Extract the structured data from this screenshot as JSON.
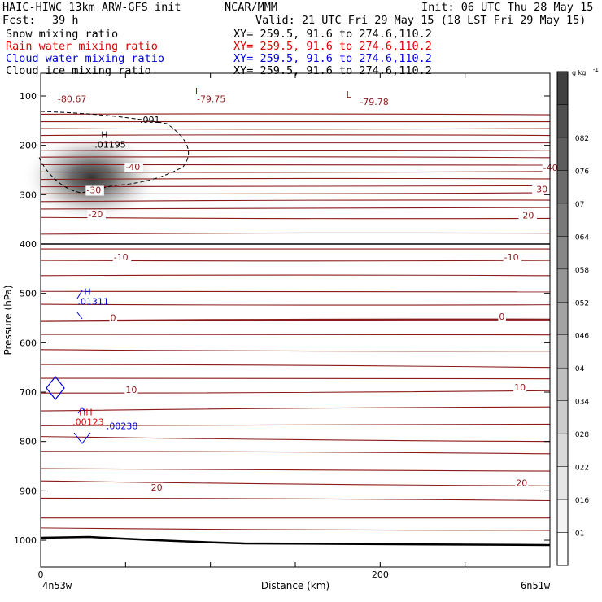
{
  "header": {
    "model": "HAIC-HIWC 13km ARW-GFS init",
    "center": "NCAR/MMM",
    "init": "Init: 06 UTC Thu 28 May 15",
    "fcst_label": "Fcst:",
    "fcst_value": "39 h",
    "valid": "Valid: 21 UTC Fri 29 May 15 (18 LST Fri 29 May 15)"
  },
  "fields": [
    {
      "name": "Snow mixing ratio",
      "xy": "XY= 259.5, 91.6 to 274.6,110.2",
      "color": "#000000"
    },
    {
      "name": "Rain water mixing ratio",
      "xy": "XY= 259.5, 91.6 to 274.6,110.2",
      "color": "#e00000"
    },
    {
      "name": "Cloud water mixing ratio",
      "xy": "XY= 259.5, 91.6 to 274.6,110.2",
      "color": "#0000e0"
    },
    {
      "name": "Cloud ice mixing ratio",
      "xy": "XY= 259.5, 91.6 to 274.6,110.2",
      "color": "#000000"
    }
  ],
  "chart_data": {
    "type": "cross-section",
    "xlabel": "Distance (km)",
    "ylabel": "Pressure (hPa)",
    "xlim": [
      0,
      300
    ],
    "x_ticks": [
      0,
      200
    ],
    "ylim": [
      1050,
      65
    ],
    "y_ticks": [
      100,
      200,
      300,
      400,
      500,
      600,
      700,
      800,
      900,
      1000
    ],
    "left_endpoint": "4n53w",
    "right_endpoint": "6n51w",
    "colorbar": {
      "unit": "g kg",
      "unit_exp": "-1",
      "levels": [
        ".01",
        ".016",
        ".022",
        ".028",
        ".034",
        ".04",
        ".046",
        ".052",
        ".058",
        ".064",
        ".07",
        ".076",
        ".082"
      ],
      "colors": [
        "#ffffff",
        "#f3f3f3",
        "#e6e6e6",
        "#d9d9d9",
        "#cccccc",
        "#bfbfbf",
        "#b1b1b1",
        "#a3a3a3",
        "#959595",
        "#878787",
        "#797979",
        "#6b6b6b",
        "#5d5d5d",
        "#4f4f4f",
        "#404040"
      ]
    },
    "temperature_labels": [
      {
        "text": "-80.67",
        "x": 10,
        "p": 112
      },
      {
        "text": "-79.75",
        "x": 92,
        "p": 112
      },
      {
        "text": "L",
        "x": 91,
        "p": 97
      },
      {
        "text": "L",
        "x": 180,
        "p": 103
      },
      {
        "text": "-79.78",
        "x": 188,
        "p": 118
      },
      {
        "text": "-40",
        "x": 50,
        "p": 250
      },
      {
        "text": "-40",
        "x": 296,
        "p": 252
      },
      {
        "text": "-30",
        "x": 27,
        "p": 297
      },
      {
        "text": "-30",
        "x": 290,
        "p": 295
      },
      {
        "text": "-20",
        "x": 28,
        "p": 346
      },
      {
        "text": "-20",
        "x": 282,
        "p": 348
      },
      {
        "text": "-10",
        "x": 43,
        "p": 433
      },
      {
        "text": "-10",
        "x": 273,
        "p": 433
      },
      {
        "text": "0",
        "x": 41,
        "p": 556
      },
      {
        "text": "0",
        "x": 270,
        "p": 553
      },
      {
        "text": "10",
        "x": 50,
        "p": 702
      },
      {
        "text": "10",
        "x": 279,
        "p": 697
      },
      {
        "text": "20",
        "x": 65,
        "p": 899
      },
      {
        "text": "20",
        "x": 280,
        "p": 890
      }
    ],
    "temperature_contours": [
      {
        "p_left": 137,
        "p_right": 138
      },
      {
        "p_left": 152,
        "p_right": 152
      },
      {
        "p_left": 166,
        "p_right": 166
      },
      {
        "p_left": 180,
        "p_right": 180
      },
      {
        "p_left": 195,
        "p_right": 195
      },
      {
        "p_left": 210,
        "p_right": 210
      },
      {
        "p_left": 224,
        "p_right": 225
      },
      {
        "p_left": 239,
        "p_right": 240
      },
      {
        "p_left": 254,
        "p_right": 253
      },
      {
        "p_left": 269,
        "p_right": 268
      },
      {
        "p_left": 284,
        "p_right": 282
      },
      {
        "p_left": 298,
        "p_right": 296
      },
      {
        "p_left": 314,
        "p_right": 311
      },
      {
        "p_left": 329,
        "p_right": 326
      },
      {
        "p_left": 346,
        "p_right": 348
      },
      {
        "p_left": 380,
        "p_right": 378
      },
      {
        "p_left": 410,
        "p_right": 410
      },
      {
        "p_left": 433,
        "p_right": 433
      },
      {
        "p_left": 464,
        "p_right": 464
      },
      {
        "p_left": 496,
        "p_right": 497
      },
      {
        "p_left": 522,
        "p_right": 523
      },
      {
        "p_left": 556,
        "p_right": 553
      },
      {
        "p_left": 583,
        "p_right": 584
      },
      {
        "p_left": 614,
        "p_right": 617
      },
      {
        "p_left": 644,
        "p_right": 650
      },
      {
        "p_left": 672,
        "p_right": 673
      },
      {
        "p_left": 702,
        "p_right": 697
      },
      {
        "p_left": 738,
        "p_right": 730
      },
      {
        "p_left": 768,
        "p_right": 765
      },
      {
        "p_left": 790,
        "p_right": 800
      },
      {
        "p_left": 820,
        "p_right": 825
      },
      {
        "p_left": 855,
        "p_right": 860
      },
      {
        "p_left": 880,
        "p_right": 890
      },
      {
        "p_left": 915,
        "p_right": 920
      },
      {
        "p_left": 955,
        "p_right": 955
      },
      {
        "p_left": 975,
        "p_right": 980
      }
    ],
    "extrema": [
      {
        "text": "H",
        "value": ".01195",
        "x": 38,
        "p": 198,
        "color": "#000000"
      },
      {
        "text": "H",
        "value": ".01311",
        "x": 28,
        "p": 516,
        "color": "#0000e0"
      },
      {
        "text": "HH",
        "value": ".00123",
        "x": 25,
        "p": 760,
        "color": "#e00000"
      },
      {
        "text": "",
        "value": ".00238",
        "x": 45,
        "p": 768,
        "color": "#0000e0"
      }
    ],
    "snow_contour_label": ".001",
    "terrain_note": "ground surface ~993 hPa rising to ~1008 hPa"
  }
}
